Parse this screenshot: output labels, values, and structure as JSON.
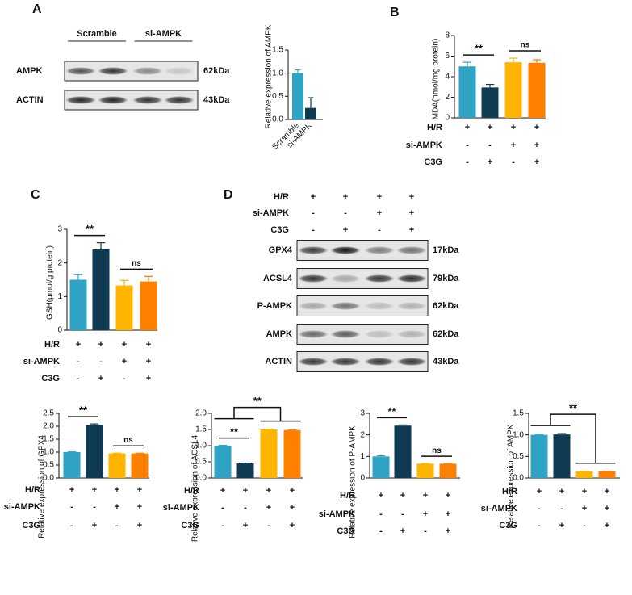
{
  "panel_labels": [
    "A",
    "B",
    "C",
    "D"
  ],
  "blots": [
    {
      "lanes": [
        "Scramble",
        "si-AMPK"
      ],
      "rows": [
        {
          "name": "AMPK",
          "size": "62kDa"
        },
        {
          "name": "ACTIN",
          "size": "43kDa"
        }
      ]
    },
    {
      "conditions": [
        {
          "name": "H/R",
          "signs": [
            "+",
            "+",
            "+",
            "+"
          ]
        },
        {
          "name": "si-AMPK",
          "signs": [
            "-",
            "-",
            "+",
            "+"
          ]
        },
        {
          "name": "C3G",
          "signs": [
            "-",
            "+",
            "-",
            "+"
          ]
        }
      ],
      "rows": [
        {
          "name": "GPX4",
          "size": "17kDa"
        },
        {
          "name": "ACSL4",
          "size": "79kDa"
        },
        {
          "name": "P-AMPK",
          "size": "62kDa"
        },
        {
          "name": "AMPK",
          "size": "62kDa"
        },
        {
          "name": "ACTIN",
          "size": "43kDa"
        }
      ]
    }
  ],
  "chart_data": [
    {
      "type": "bar",
      "ylabel": "Relative expression of AMPK",
      "categories": [
        "Scramble",
        "si-AMPK"
      ],
      "values": [
        1.0,
        0.25
      ],
      "errors": [
        0.07,
        0.22
      ],
      "colors": [
        "#2ea3c4",
        "#0e3a52"
      ],
      "ylim": [
        0,
        1.5
      ],
      "yticks": [
        {
          "value": 0,
          "label": "0.0"
        },
        {
          "value": 0.5,
          "label": "0.5"
        },
        {
          "value": 1,
          "label": "1.0"
        },
        {
          "value": 1.5,
          "label": "1.5"
        }
      ]
    },
    {
      "type": "bar",
      "ylabel": "MDA(nmol/mg protein)",
      "values": [
        5.0,
        2.95,
        5.4,
        5.35
      ],
      "errors": [
        0.4,
        0.3,
        0.4,
        0.3
      ],
      "colors": [
        "#2ea3c4",
        "#0e3a52",
        "#ffb400",
        "#ff8000"
      ],
      "ylim": [
        0,
        8
      ],
      "yticks": [
        0,
        2,
        4,
        6,
        8
      ],
      "conditions": [
        {
          "name": "H/R",
          "signs": [
            "+",
            "+",
            "+",
            "+"
          ]
        },
        {
          "name": "si-AMPK",
          "signs": [
            "-",
            "-",
            "+",
            "+"
          ]
        },
        {
          "name": "C3G",
          "signs": [
            "-",
            "+",
            "-",
            "+"
          ]
        }
      ],
      "annotations": [
        {
          "text": "**",
          "left": [
            0
          ],
          "right": [
            1
          ]
        },
        {
          "text": "ns",
          "left": [
            2
          ],
          "right": [
            3
          ]
        }
      ]
    },
    {
      "type": "bar",
      "ylabel": "GSH(μmol/g protein)",
      "values": [
        1.5,
        2.4,
        1.33,
        1.45
      ],
      "errors": [
        0.15,
        0.2,
        0.15,
        0.15
      ],
      "colors": [
        "#2ea3c4",
        "#0e3a52",
        "#ffb400",
        "#ff8000"
      ],
      "ylim": [
        0,
        3
      ],
      "yticks": [
        0,
        1,
        2,
        3
      ],
      "conditions": [
        {
          "name": "H/R",
          "signs": [
            "+",
            "+",
            "+",
            "+"
          ]
        },
        {
          "name": "si-AMPK",
          "signs": [
            "-",
            "-",
            "+",
            "+"
          ]
        },
        {
          "name": "C3G",
          "signs": [
            "-",
            "+",
            "-",
            "+"
          ]
        }
      ],
      "annotations": [
        {
          "text": "**",
          "left": [
            0
          ],
          "right": [
            1
          ]
        },
        {
          "text": "ns",
          "left": [
            2
          ],
          "right": [
            3
          ]
        }
      ]
    },
    {
      "type": "bar",
      "ylabel": "Relative expression of GPX4",
      "values": [
        1.0,
        2.05,
        0.95,
        0.95
      ],
      "errors": [
        0.01,
        0.04,
        0.01,
        0.01
      ],
      "colors": [
        "#2ea3c4",
        "#0e3a52",
        "#ffb400",
        "#ff8000"
      ],
      "ylim": [
        0,
        2.5
      ],
      "yticks": [
        {
          "value": 0,
          "label": "0.0"
        },
        {
          "value": 0.5,
          "label": "0.5"
        },
        {
          "value": 1,
          "label": "1.0"
        },
        {
          "value": 1.5,
          "label": "1.5"
        },
        {
          "value": 2,
          "label": "2.0"
        },
        {
          "value": 2.5,
          "label": "2.5"
        }
      ],
      "conditions": [
        {
          "name": "H/R",
          "signs": [
            "+",
            "+",
            "+",
            "+"
          ]
        },
        {
          "name": "si-AMPK",
          "signs": [
            "-",
            "-",
            "+",
            "+"
          ]
        },
        {
          "name": "C3G",
          "signs": [
            "-",
            "+",
            "-",
            "+"
          ]
        }
      ],
      "annotations": [
        {
          "text": "**",
          "left": [
            0
          ],
          "right": [
            1
          ]
        },
        {
          "text": "ns",
          "left": [
            2
          ],
          "right": [
            3
          ]
        }
      ]
    },
    {
      "type": "bar",
      "ylabel": "Relative expression of ACSL4",
      "values": [
        1.0,
        0.45,
        1.5,
        1.48
      ],
      "errors": [
        0.01,
        0.01,
        0.01,
        0.01
      ],
      "colors": [
        "#2ea3c4",
        "#0e3a52",
        "#ffb400",
        "#ff8000"
      ],
      "ylim": [
        0,
        2
      ],
      "yticks": [
        {
          "value": 0,
          "label": "0.0"
        },
        {
          "value": 0.5,
          "label": "0.5"
        },
        {
          "value": 1,
          "label": "1.0"
        },
        {
          "value": 1.5,
          "label": "1.5"
        },
        {
          "value": 2,
          "label": "2.0"
        }
      ],
      "conditions": [
        {
          "name": "H/R",
          "signs": [
            "+",
            "+",
            "+",
            "+"
          ]
        },
        {
          "name": "si-AMPK",
          "signs": [
            "-",
            "-",
            "+",
            "+"
          ]
        },
        {
          "name": "C3G",
          "signs": [
            "-",
            "+",
            "-",
            "+"
          ]
        }
      ],
      "annotations": [
        {
          "text": "**",
          "left": [
            0
          ],
          "right": [
            1
          ]
        },
        {
          "text": "**",
          "left": [
            0,
            1
          ],
          "right": [
            2,
            3
          ]
        }
      ]
    },
    {
      "type": "bar",
      "ylabel": "Relative expression of P-AMPK",
      "values": [
        1.0,
        2.43,
        0.66,
        0.66
      ],
      "errors": [
        0.03,
        0.03,
        0.01,
        0.01
      ],
      "colors": [
        "#2ea3c4",
        "#0e3a52",
        "#ffb400",
        "#ff8000"
      ],
      "ylim": [
        0,
        3
      ],
      "yticks": [
        0,
        1,
        2,
        3
      ],
      "conditions": [
        {
          "name": "H/R",
          "signs": [
            "+",
            "+",
            "+",
            "+"
          ]
        },
        {
          "name": "si-AMPK",
          "signs": [
            "-",
            "-",
            "+",
            "+"
          ]
        },
        {
          "name": "C3G",
          "signs": [
            "-",
            "+",
            "-",
            "+"
          ]
        }
      ],
      "annotations": [
        {
          "text": "**",
          "left": [
            0
          ],
          "right": [
            1
          ]
        },
        {
          "text": "ns",
          "left": [
            2
          ],
          "right": [
            3
          ]
        }
      ]
    },
    {
      "type": "bar",
      "ylabel": "Relative expression of AMPK",
      "values": [
        1.0,
        1.01,
        0.15,
        0.15
      ],
      "errors": [
        0.01,
        0.02,
        0.005,
        0.005
      ],
      "colors": [
        "#2ea3c4",
        "#0e3a52",
        "#ffb400",
        "#ff8000"
      ],
      "ylim": [
        0,
        1.5
      ],
      "yticks": [
        {
          "value": 0,
          "label": "0.0"
        },
        {
          "value": 0.5,
          "label": "0.5"
        },
        {
          "value": 1,
          "label": "1.0"
        },
        {
          "value": 1.5,
          "label": "1.5"
        }
      ],
      "conditions": [
        {
          "name": "H/R",
          "signs": [
            "+",
            "+",
            "+",
            "+"
          ]
        },
        {
          "name": "si-AMPK",
          "signs": [
            "-",
            "-",
            "+",
            "+"
          ]
        },
        {
          "name": "C3G",
          "signs": [
            "-",
            "+",
            "-",
            "+"
          ]
        }
      ],
      "annotations": [
        {
          "text": "**",
          "left": [
            0,
            1
          ],
          "right": [
            2,
            3
          ]
        }
      ]
    }
  ]
}
